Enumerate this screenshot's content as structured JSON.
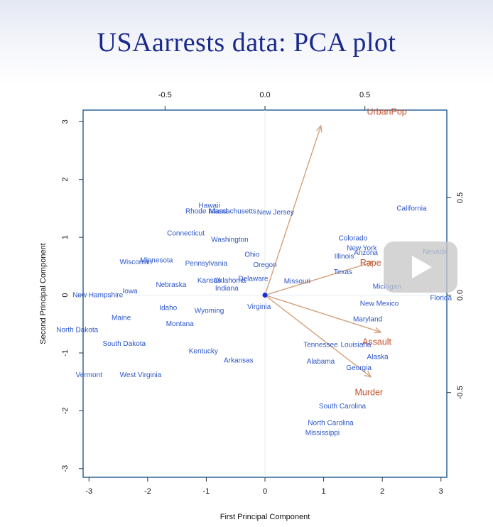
{
  "slide": {
    "title": "USAarrests data: PCA plot"
  },
  "colors": {
    "title": "#1a2a8c",
    "states": "#2b55c8",
    "vectors": "#c4502a",
    "arrows": "#d4a07a",
    "frame": "#3a6f9f",
    "origin": "#1530d8"
  },
  "chart_data": {
    "type": "scatter",
    "title": "",
    "xlabel": "First Principal Component",
    "ylabel": "Second Principal Component",
    "xlim": [
      -3.1,
      3.1
    ],
    "ylim": [
      -3.15,
      3.2
    ],
    "xticks": [
      -3,
      -2,
      -1,
      0,
      1,
      2,
      3
    ],
    "yticks": [
      -3,
      -2,
      -1,
      0,
      1,
      2,
      3
    ],
    "top_xlim": [
      -0.91,
      0.91
    ],
    "top_xticks": [
      -0.5,
      0.0,
      0.5
    ],
    "right_ylim": [
      -0.935,
      0.95
    ],
    "right_yticks": [
      -0.5,
      0.0,
      0.5
    ],
    "grid": false,
    "points": [
      {
        "label": "California",
        "x": 2.5,
        "y": 1.5
      },
      {
        "label": "Nevada",
        "x": 2.9,
        "y": 0.75
      },
      {
        "label": "Florida",
        "x": 3.0,
        "y": -0.05
      },
      {
        "label": "Colorado",
        "x": 1.5,
        "y": 0.98
      },
      {
        "label": "New York",
        "x": 1.65,
        "y": 0.81
      },
      {
        "label": "Arizona",
        "x": 1.72,
        "y": 0.73
      },
      {
        "label": "Illinois",
        "x": 1.35,
        "y": 0.67
      },
      {
        "label": "Rape",
        "x": 1.8,
        "y": 0.55
      },
      {
        "label": "Texas",
        "x": 1.33,
        "y": 0.4
      },
      {
        "label": "Michigan",
        "x": 2.08,
        "y": 0.15
      },
      {
        "label": "New Mexico",
        "x": 1.95,
        "y": -0.15
      },
      {
        "label": "Maryland",
        "x": 1.75,
        "y": -0.42
      },
      {
        "label": "Tennessee",
        "x": 0.95,
        "y": -0.86
      },
      {
        "label": "Louisiana",
        "x": 1.55,
        "y": -0.86
      },
      {
        "label": "Alaska",
        "x": 1.92,
        "y": -1.07
      },
      {
        "label": "Alabama",
        "x": 0.95,
        "y": -1.15
      },
      {
        "label": "Georgia",
        "x": 1.6,
        "y": -1.26
      },
      {
        "label": "South Carolina",
        "x": 1.32,
        "y": -1.92
      },
      {
        "label": "North Carolina",
        "x": 1.12,
        "y": -2.21
      },
      {
        "label": "Mississippi",
        "x": 0.98,
        "y": -2.38
      },
      {
        "label": "Hawaii",
        "x": -0.95,
        "y": 1.55
      },
      {
        "label": "Rhode Island",
        "x": -1.0,
        "y": 1.45
      },
      {
        "label": "Massachusetts",
        "x": -0.55,
        "y": 1.45
      },
      {
        "label": "New Jersey",
        "x": 0.18,
        "y": 1.43
      },
      {
        "label": "Connecticut",
        "x": -1.35,
        "y": 1.07
      },
      {
        "label": "Washington",
        "x": -0.6,
        "y": 0.96
      },
      {
        "label": "Ohio",
        "x": -0.22,
        "y": 0.7
      },
      {
        "label": "Oregon",
        "x": 0.0,
        "y": 0.52
      },
      {
        "label": "Minnesota",
        "x": -1.85,
        "y": 0.6
      },
      {
        "label": "Wisconsin",
        "x": -2.2,
        "y": 0.57
      },
      {
        "label": "Pennsylvania",
        "x": -1.0,
        "y": 0.55
      },
      {
        "label": "Kansas",
        "x": -0.95,
        "y": 0.25
      },
      {
        "label": "Oklahoma",
        "x": -0.6,
        "y": 0.25
      },
      {
        "label": "Delaware",
        "x": -0.2,
        "y": 0.28
      },
      {
        "label": "Missouri",
        "x": 0.55,
        "y": 0.24
      },
      {
        "label": "Nebraska",
        "x": -1.6,
        "y": 0.18
      },
      {
        "label": "Indiana",
        "x": -0.65,
        "y": 0.12
      },
      {
        "label": "Virginia",
        "x": -0.1,
        "y": -0.2
      },
      {
        "label": "Iowa",
        "x": -2.3,
        "y": 0.07
      },
      {
        "label": "New Hampshire",
        "x": -2.85,
        "y": 0.0
      },
      {
        "label": "Idaho",
        "x": -1.65,
        "y": -0.22
      },
      {
        "label": "Wyoming",
        "x": -0.95,
        "y": -0.27
      },
      {
        "label": "Maine",
        "x": -2.45,
        "y": -0.39
      },
      {
        "label": "Montana",
        "x": -1.45,
        "y": -0.5
      },
      {
        "label": "North Dakota",
        "x": -3.2,
        "y": -0.6
      },
      {
        "label": "South Dakota",
        "x": -2.4,
        "y": -0.84
      },
      {
        "label": "Kentucky",
        "x": -1.05,
        "y": -0.97
      },
      {
        "label": "Arkansas",
        "x": -0.45,
        "y": -1.13
      },
      {
        "label": "Vermont",
        "x": -3.0,
        "y": -1.38
      },
      {
        "label": "West Virginia",
        "x": -2.12,
        "y": -1.38
      }
    ],
    "loadings": [
      {
        "label": "UrbanPop",
        "x": 0.28,
        "y": 0.87,
        "lx": 0.61,
        "ly": 0.94
      },
      {
        "label": "Rape",
        "x": 0.54,
        "y": 0.17,
        "lx": 0.5,
        "ly": 0.1
      },
      {
        "label": "Assault",
        "x": 0.58,
        "y": -0.19,
        "lx": 0.56,
        "ly": -0.24
      },
      {
        "label": "Murder",
        "x": 0.53,
        "y": -0.42,
        "lx": 0.52,
        "ly": -0.5
      }
    ]
  },
  "video": {
    "play_icon": "play-icon"
  }
}
